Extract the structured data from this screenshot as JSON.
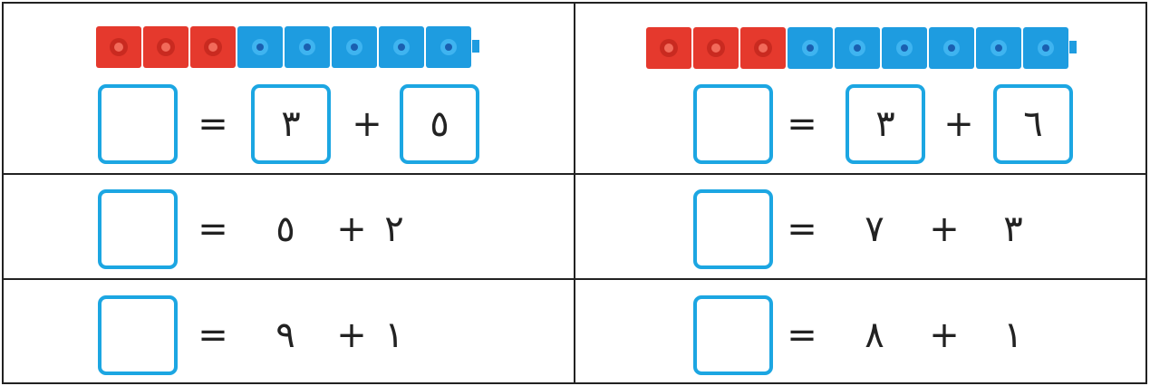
{
  "table": {
    "rows": [
      [
        {
          "boxed": true,
          "tokens": [
            "=",
            "٣",
            "+",
            "٥"
          ]
        },
        {
          "boxed": true,
          "tokens": [
            "=",
            "٣",
            "+",
            "٦"
          ]
        }
      ],
      [
        {
          "boxed": false,
          "tokens": [
            "=",
            "٥",
            "+",
            "٢"
          ]
        },
        {
          "boxed": false,
          "tokens": [
            "=",
            "٧",
            "+",
            "٣"
          ]
        }
      ],
      [
        {
          "boxed": false,
          "tokens": [
            "=",
            "٩",
            "+",
            "١"
          ]
        },
        {
          "boxed": false,
          "tokens": [
            "=",
            "٨",
            "+",
            "١"
          ]
        }
      ]
    ]
  }
}
